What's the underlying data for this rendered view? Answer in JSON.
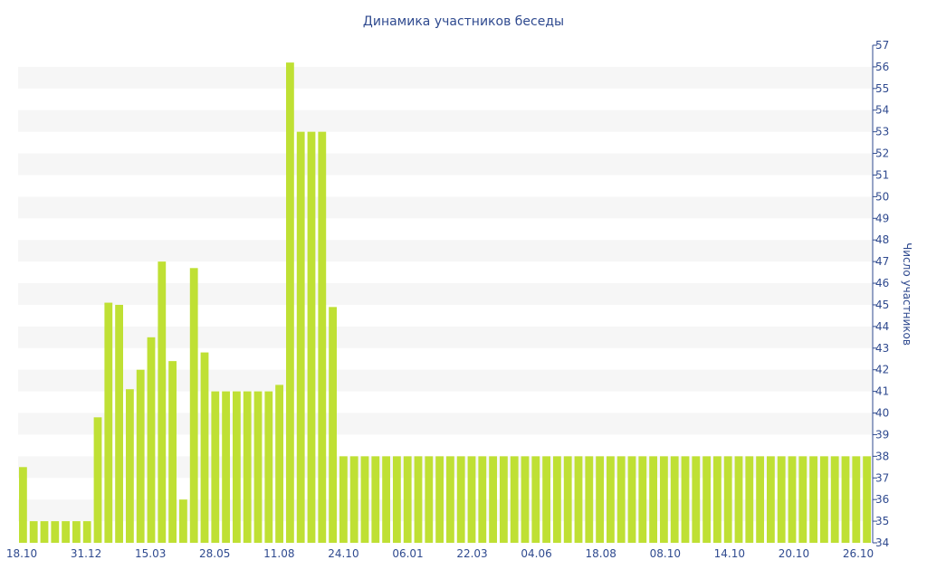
{
  "chart_data": {
    "type": "bar",
    "title": "Динамика участников беседы",
    "xlabel": "",
    "ylabel": "Число участников",
    "ylim": [
      34,
      57
    ],
    "y_ticks": [
      34,
      35,
      36,
      37,
      38,
      39,
      40,
      41,
      42,
      43,
      44,
      45,
      46,
      47,
      48,
      49,
      50,
      51,
      52,
      53,
      54,
      55,
      56,
      57
    ],
    "x_tick_labels": [
      "18.10",
      "31.12",
      "15.03",
      "28.05",
      "11.08",
      "24.10",
      "06.01",
      "22.03",
      "04.06",
      "18.08",
      "08.10",
      "14.10",
      "20.10",
      "26.10"
    ],
    "bar_color": "#bfe034",
    "band_color": "#f6f6f6",
    "axis_color": "#2f4a8f",
    "grid": true,
    "legend": "none",
    "values": [
      37.5,
      35,
      35,
      35,
      35,
      35,
      35,
      39.8,
      45.1,
      45,
      41.1,
      42,
      43.5,
      47,
      42.4,
      36,
      46.7,
      42.8,
      41,
      41,
      41,
      41,
      41,
      41,
      41.3,
      56.2,
      53,
      53,
      53,
      44.9,
      38,
      38,
      38,
      38,
      38,
      38,
      38,
      38,
      38,
      38,
      38,
      38,
      38,
      38,
      38,
      38,
      38,
      38,
      38,
      38,
      38,
      38,
      38,
      38,
      38,
      38,
      38,
      38,
      38,
      38,
      38,
      38,
      38,
      38,
      38,
      38,
      38,
      38,
      38,
      38,
      38,
      38,
      38,
      38,
      38,
      38,
      38,
      38,
      38,
      38
    ]
  }
}
